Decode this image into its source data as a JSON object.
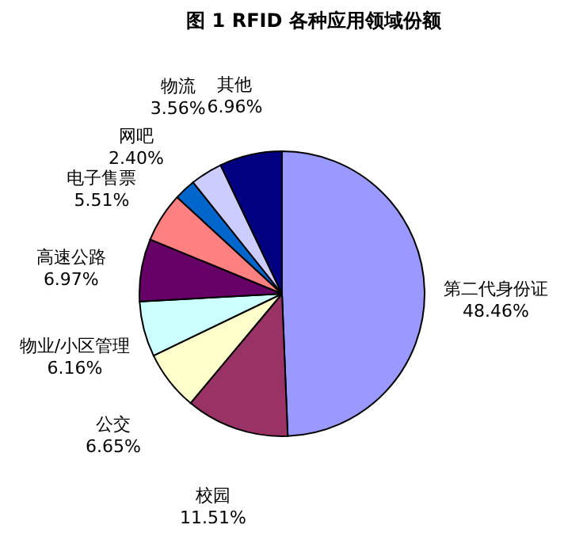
{
  "chart_data": {
    "type": "pie",
    "title": "图 1 RFID 各种应用领域份额",
    "categories": [
      "第二代身份证",
      "校园",
      "公交",
      "物业/小区管理",
      "高速公路",
      "电子售票",
      "网吧",
      "物流",
      "其他"
    ],
    "values": [
      48.46,
      11.51,
      6.65,
      6.16,
      6.97,
      5.51,
      2.4,
      3.56,
      6.96
    ],
    "value_labels": [
      "48.46%",
      "11.51%",
      "6.65%",
      "6.16%",
      "6.97%",
      "5.51%",
      "2.40%",
      "3.56%",
      "6.96%"
    ],
    "colors": [
      "#9999ff",
      "#993366",
      "#ffffcc",
      "#ccffff",
      "#660066",
      "#ff8080",
      "#0066cc",
      "#ccccff",
      "#000080"
    ],
    "legend": false
  }
}
